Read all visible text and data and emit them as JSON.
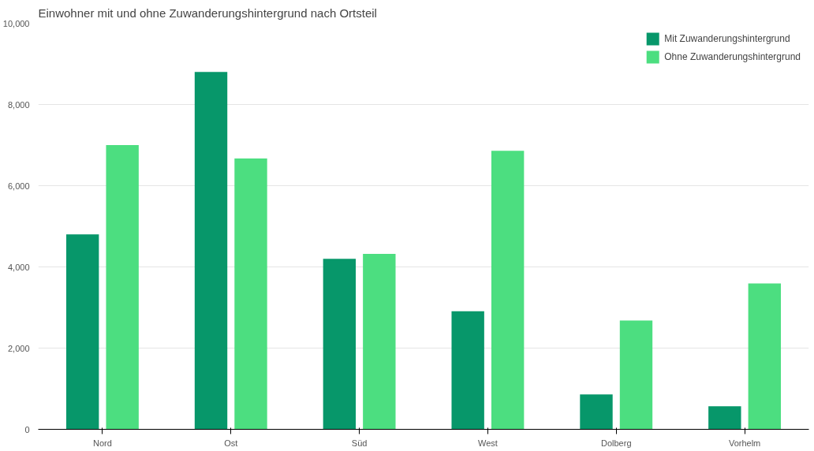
{
  "chart_data": {
    "type": "bar",
    "title": "Einwohner mit und ohne Zuwanderungshintergrund nach Ortsteil",
    "categories": [
      "Nord",
      "Ost",
      "Süd",
      "West",
      "Dolberg",
      "Vorhelm"
    ],
    "series": [
      {
        "name": "Mit Zuwanderungshintergrund",
        "color": "#07976a",
        "values": [
          4800,
          8800,
          4200,
          2910,
          860,
          570
        ]
      },
      {
        "name": "Ohne Zuwanderungshintergrund",
        "color": "#4cde80",
        "values": [
          7000,
          6670,
          4320,
          6860,
          2680,
          3590
        ]
      }
    ],
    "ylim": [
      0,
      10000
    ],
    "yticks": [
      0,
      {
        "value": 2000,
        "label": "2,000"
      },
      {
        "value": 4000,
        "label": "4,000"
      },
      {
        "value": 6000,
        "label": "6,000"
      },
      {
        "value": 8000,
        "label": "8,000"
      },
      {
        "value": 10000,
        "label": "10,000"
      }
    ],
    "grid": "y",
    "legend": "top right"
  }
}
